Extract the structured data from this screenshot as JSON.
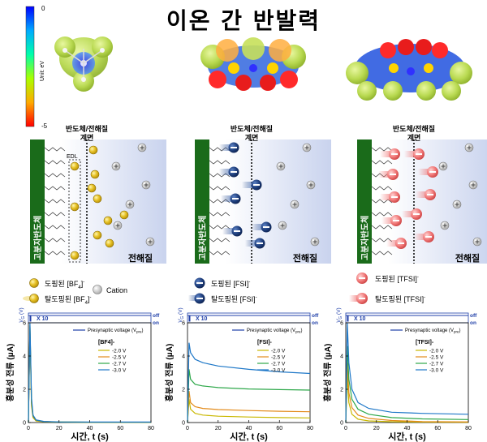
{
  "title": "이온 간 반발력",
  "colorbar": {
    "max": "0",
    "min": "-5",
    "unit": "Unit: eV",
    "colors": [
      "#0000ff",
      "#00aaff",
      "#00ffaa",
      "#aaff00",
      "#ffaa00",
      "#ff0000"
    ]
  },
  "interface_label": [
    "반도체/전해질",
    "계면"
  ],
  "polymer_label": "고분자반도체",
  "electrolyte_label": "전해질",
  "edl_label": "EDL",
  "legend": {
    "bf4": {
      "doped": "도핑된 [BF",
      "undoped": "탈도핑된 [BF",
      "sub": "4",
      "sup": "-",
      "cation": "Cation"
    },
    "fsi": {
      "doped": "도핑된 [FSI]",
      "undoped": "탈도핑된 [FSI]",
      "sup": "-"
    },
    "tfsi": {
      "doped": "도핑된 [TFSI]",
      "undoped": "탈도핑된 [TFSI]",
      "sup": "-"
    }
  },
  "plot_common": {
    "ylabel": "흥분성 전류 (μA)",
    "xlabel": "시간, t (s)",
    "vg_label": "V",
    "vg_sub": "G",
    "vg_unit": "(V)",
    "off_label": "off",
    "on_label": "on",
    "x10_label": "X 10",
    "presyn_label": "Presynaptic voltage (V",
    "presyn_sub": "pre",
    "presyn_close": ")",
    "xticks": [
      "0",
      "20",
      "40",
      "60",
      "80"
    ],
    "yticks": [
      "0",
      "2",
      "4",
      "6"
    ]
  },
  "chart_data": [
    {
      "type": "line",
      "title": "[BF4]-",
      "xlabel": "시간, t (s)",
      "ylabel": "흥분성 전류 (μA)",
      "xlim": [
        0,
        80
      ],
      "ylim": [
        0,
        6
      ],
      "series": [
        {
          "name": "-2.0 V",
          "color": "#c9b800",
          "x": [
            0,
            1,
            2,
            3,
            5,
            10,
            20,
            40,
            60,
            80
          ],
          "y": [
            0,
            5.6,
            1.0,
            0.3,
            0.1,
            0.05,
            0.03,
            0.02,
            0.02,
            0.02
          ]
        },
        {
          "name": "-2.5 V",
          "color": "#e38b1b",
          "x": [
            0,
            1,
            2,
            3,
            5,
            10,
            20,
            40,
            60,
            80
          ],
          "y": [
            0,
            5.8,
            1.2,
            0.35,
            0.12,
            0.06,
            0.03,
            0.02,
            0.02,
            0.02
          ]
        },
        {
          "name": "-2.7 V",
          "color": "#2ea84a",
          "x": [
            0,
            1,
            2,
            3,
            5,
            10,
            20,
            40,
            60,
            80
          ],
          "y": [
            0,
            5.9,
            1.3,
            0.4,
            0.14,
            0.06,
            0.03,
            0.02,
            0.02,
            0.02
          ]
        },
        {
          "name": "-3.0 V",
          "color": "#1f78c8",
          "x": [
            0,
            1,
            2,
            3,
            5,
            10,
            20,
            40,
            60,
            80
          ],
          "y": [
            0,
            6.0,
            1.5,
            0.45,
            0.16,
            0.07,
            0.04,
            0.03,
            0.03,
            0.03
          ]
        }
      ]
    },
    {
      "type": "line",
      "title": "[FSI]-",
      "xlabel": "시간, t (s)",
      "ylabel": "흥분성 전류 (μA)",
      "xlim": [
        0,
        80
      ],
      "ylim": [
        0,
        6
      ],
      "series": [
        {
          "name": "-2.0 V",
          "color": "#c9b800",
          "x": [
            0,
            1,
            2,
            5,
            10,
            20,
            40,
            60,
            80
          ],
          "y": [
            0,
            1.4,
            0.8,
            0.55,
            0.45,
            0.38,
            0.33,
            0.3,
            0.28
          ]
        },
        {
          "name": "-2.5 V",
          "color": "#e38b1b",
          "x": [
            0,
            1,
            2,
            5,
            10,
            20,
            40,
            60,
            80
          ],
          "y": [
            0,
            1.9,
            1.2,
            0.95,
            0.85,
            0.78,
            0.72,
            0.68,
            0.65
          ]
        },
        {
          "name": "-2.7 V",
          "color": "#2ea84a",
          "x": [
            0,
            1,
            2,
            5,
            10,
            20,
            40,
            60,
            80
          ],
          "y": [
            0,
            3.2,
            2.6,
            2.3,
            2.2,
            2.1,
            2.02,
            1.98,
            1.95
          ]
        },
        {
          "name": "-3.0 V",
          "color": "#1f78c8",
          "x": [
            0,
            1,
            2,
            5,
            10,
            20,
            40,
            60,
            80
          ],
          "y": [
            0,
            4.8,
            4.2,
            3.8,
            3.6,
            3.4,
            3.2,
            3.05,
            2.95
          ]
        }
      ]
    },
    {
      "type": "line",
      "title": "[TFSI]-",
      "xlabel": "시간, t (s)",
      "ylabel": "흥분성 전류 (μA)",
      "xlim": [
        0,
        80
      ],
      "ylim": [
        0,
        6
      ],
      "series": [
        {
          "name": "-2.0 V",
          "color": "#c9b800",
          "x": [
            0,
            1,
            2,
            4,
            8,
            15,
            30,
            50,
            80
          ],
          "y": [
            0,
            2.8,
            1.2,
            0.5,
            0.2,
            0.1,
            0.05,
            0.03,
            0.02
          ]
        },
        {
          "name": "-2.5 V",
          "color": "#e38b1b",
          "x": [
            0,
            1,
            2,
            4,
            8,
            15,
            30,
            50,
            80
          ],
          "y": [
            0,
            3.6,
            1.8,
            0.9,
            0.45,
            0.25,
            0.12,
            0.06,
            0.04
          ]
        },
        {
          "name": "-2.7 V",
          "color": "#2ea84a",
          "x": [
            0,
            1,
            2,
            4,
            8,
            15,
            30,
            50,
            80
          ],
          "y": [
            0,
            4.6,
            2.6,
            1.4,
            0.8,
            0.5,
            0.3,
            0.22,
            0.18
          ]
        },
        {
          "name": "-3.0 V",
          "color": "#1f78c8",
          "x": [
            0,
            1,
            2,
            4,
            8,
            15,
            30,
            50,
            80
          ],
          "y": [
            0,
            6.0,
            3.6,
            2.0,
            1.2,
            0.85,
            0.62,
            0.55,
            0.5
          ]
        }
      ]
    }
  ]
}
